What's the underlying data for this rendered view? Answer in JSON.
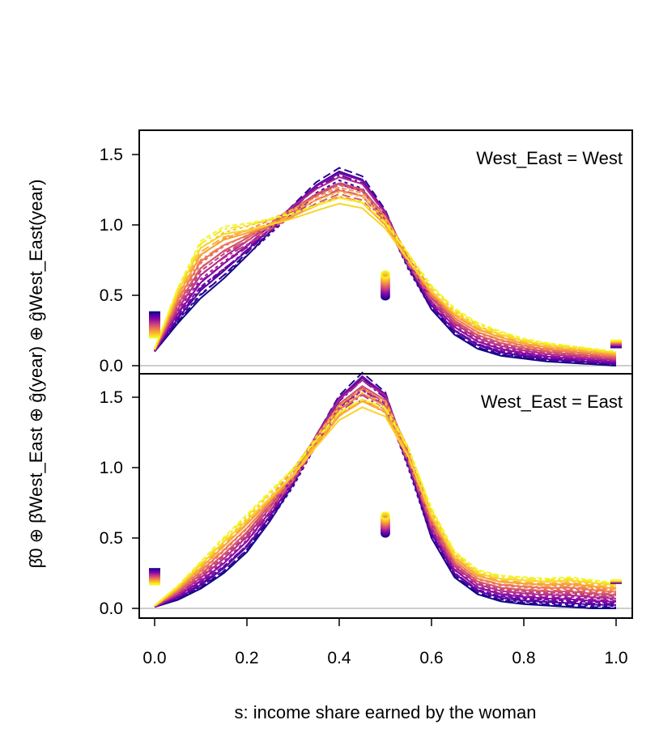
{
  "chart_data": [
    {
      "type": "line",
      "panel_label": "West_East = West",
      "xlabel": "s: income share earned by the woman",
      "ylabel": "β̂0 ⊕ β̂West_East ⊕ ĝ(year) ⊕ ĝWest_East(year)",
      "xlim": [
        0,
        1
      ],
      "ylim": [
        0,
        1.6
      ],
      "x_ticks": [
        "0.0",
        "0.2",
        "0.4",
        "0.6",
        "0.8",
        "1.0"
      ],
      "y_ticks": [
        "0.0",
        "0.5",
        "1.0",
        "1.5"
      ],
      "grid": false,
      "legend": "none",
      "color_scale": "year (dark purple → yellow)",
      "series_count": 24,
      "series_first": {
        "x": [
          0.0,
          0.05,
          0.1,
          0.15,
          0.2,
          0.25,
          0.3,
          0.35,
          0.4,
          0.45,
          0.5,
          0.55,
          0.6,
          0.65,
          0.7,
          0.75,
          0.8,
          0.85,
          0.9,
          0.95,
          1.0
        ],
        "y": [
          0.1,
          0.3,
          0.48,
          0.62,
          0.78,
          0.95,
          1.12,
          1.28,
          1.38,
          1.32,
          1.08,
          0.7,
          0.4,
          0.22,
          0.12,
          0.07,
          0.05,
          0.03,
          0.02,
          0.01,
          0.0
        ],
        "point_mass": {
          "s0": 0.38,
          "s05": 0.49,
          "s1": 0.13
        }
      },
      "series_last": {
        "x": [
          0.0,
          0.05,
          0.1,
          0.15,
          0.2,
          0.25,
          0.3,
          0.35,
          0.4,
          0.45,
          0.5,
          0.55,
          0.6,
          0.65,
          0.7,
          0.75,
          0.8,
          0.85,
          0.9,
          0.95,
          1.0
        ],
        "y": [
          0.12,
          0.55,
          0.88,
          0.98,
          1.0,
          1.03,
          1.07,
          1.12,
          1.17,
          1.14,
          1.0,
          0.78,
          0.56,
          0.4,
          0.3,
          0.24,
          0.19,
          0.16,
          0.14,
          0.12,
          0.1
        ],
        "point_mass": {
          "s0": 0.2,
          "s05": 0.65,
          "s1": 0.18
        }
      }
    },
    {
      "type": "line",
      "panel_label": "West_East = East",
      "xlim": [
        0,
        1
      ],
      "ylim": [
        0,
        1.65
      ],
      "x_ticks": [
        "0.0",
        "0.2",
        "0.4",
        "0.6",
        "0.8",
        "1.0"
      ],
      "y_ticks": [
        "0.0",
        "0.5",
        "1.0",
        "1.5"
      ],
      "grid": false,
      "legend": "none",
      "series_count": 24,
      "series_first": {
        "x": [
          0.0,
          0.05,
          0.1,
          0.15,
          0.2,
          0.25,
          0.3,
          0.35,
          0.4,
          0.45,
          0.5,
          0.55,
          0.6,
          0.65,
          0.7,
          0.75,
          0.8,
          0.85,
          0.9,
          0.95,
          1.0
        ],
        "y": [
          0.01,
          0.06,
          0.14,
          0.25,
          0.4,
          0.62,
          0.88,
          1.2,
          1.48,
          1.64,
          1.5,
          1.02,
          0.5,
          0.22,
          0.1,
          0.05,
          0.03,
          0.02,
          0.01,
          0.0,
          0.0
        ],
        "point_mass": {
          "s0": 0.28,
          "s05": 0.53,
          "s1": 0.18
        }
      },
      "series_last": {
        "x": [
          0.0,
          0.05,
          0.1,
          0.15,
          0.2,
          0.25,
          0.3,
          0.35,
          0.4,
          0.45,
          0.5,
          0.55,
          0.6,
          0.65,
          0.7,
          0.75,
          0.8,
          0.85,
          0.9,
          0.95,
          1.0
        ],
        "y": [
          0.02,
          0.16,
          0.33,
          0.5,
          0.66,
          0.82,
          0.98,
          1.18,
          1.37,
          1.46,
          1.4,
          1.12,
          0.7,
          0.4,
          0.27,
          0.23,
          0.22,
          0.21,
          0.22,
          0.2,
          0.18
        ],
        "point_mass": {
          "s0": 0.17,
          "s05": 0.66,
          "s1": 0.2
        }
      }
    }
  ]
}
